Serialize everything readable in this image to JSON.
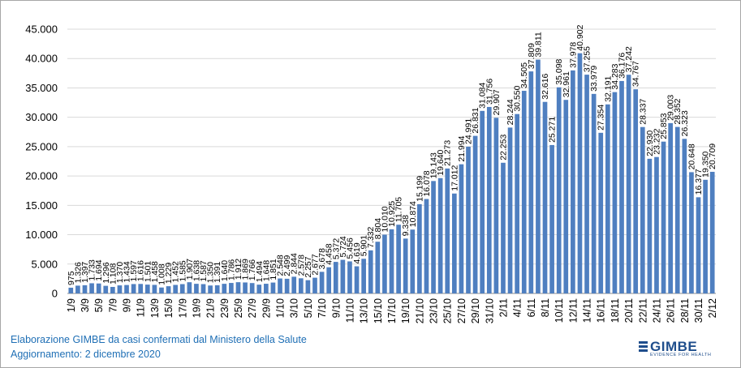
{
  "chart_data": {
    "type": "bar",
    "title": "",
    "xlabel": "",
    "ylabel": "",
    "ylim": [
      0,
      45000
    ],
    "yticks": [
      "0",
      "5.000",
      "10.000",
      "15.000",
      "20.000",
      "25.000",
      "30.000",
      "35.000",
      "40.000",
      "45.000"
    ],
    "bar_color": "#4f7fc0",
    "grid": true,
    "categories": [
      "1/9",
      "2/9",
      "3/9",
      "4/9",
      "5/9",
      "6/9",
      "7/9",
      "8/9",
      "9/9",
      "10/9",
      "11/9",
      "12/9",
      "13/9",
      "14/9",
      "15/9",
      "16/9",
      "17/9",
      "18/9",
      "19/9",
      "20/9",
      "21/9",
      "22/9",
      "23/9",
      "24/9",
      "25/9",
      "26/9",
      "27/9",
      "28/9",
      "29/9",
      "30/9",
      "1/10",
      "2/10",
      "3/10",
      "4/10",
      "5/10",
      "6/10",
      "7/10",
      "8/10",
      "9/10",
      "10/10",
      "11/10",
      "12/10",
      "13/10",
      "14/10",
      "15/10",
      "16/10",
      "17/10",
      "18/10",
      "19/10",
      "20/10",
      "21/10",
      "22/10",
      "23/10",
      "24/10",
      "25/10",
      "26/10",
      "27/10",
      "28/10",
      "29/10",
      "30/10",
      "31/10",
      "1/11",
      "2/11",
      "3/11",
      "4/11",
      "5/11",
      "6/11",
      "7/11",
      "8/11",
      "9/11",
      "10/11",
      "11/11",
      "12/11",
      "13/11",
      "14/11",
      "15/11",
      "16/11",
      "17/11",
      "18/11",
      "19/11",
      "20/11",
      "21/11",
      "22/11",
      "23/11",
      "24/11",
      "25/11",
      "26/11",
      "27/11",
      "28/11",
      "29/11",
      "30/11",
      "1/12",
      "2/12"
    ],
    "values": [
      975,
      1326,
      1397,
      1733,
      1694,
      1296,
      1108,
      1370,
      1434,
      1597,
      1616,
      1501,
      1458,
      1008,
      1229,
      1452,
      1585,
      1907,
      1638,
      1587,
      1350,
      1391,
      1640,
      1786,
      1912,
      1869,
      1766,
      1494,
      1648,
      1851,
      2548,
      2499,
      2844,
      2578,
      2257,
      2677,
      3678,
      4458,
      5372,
      5724,
      5456,
      4619,
      5901,
      7332,
      8804,
      10010,
      10925,
      11705,
      9338,
      10874,
      15199,
      16078,
      19143,
      19640,
      21273,
      17012,
      21994,
      24991,
      26831,
      31084,
      31756,
      29907,
      22253,
      28244,
      30550,
      34505,
      37809,
      39811,
      32616,
      25271,
      35098,
      32961,
      37978,
      40902,
      37255,
      33979,
      27354,
      32191,
      34283,
      36176,
      37242,
      34767,
      28337,
      22930,
      23232,
      25853,
      29003,
      28352,
      26323,
      20648,
      16377,
      19350,
      20709
    ],
    "data_labels": [
      "975",
      "1.326",
      "1.397",
      "1.733",
      "1.694",
      "1.296",
      "1.108",
      "1.370",
      "1.434",
      "1.597",
      "1.616",
      "1.501",
      "1.458",
      "1.008",
      "1.229",
      "1.452",
      "1.585",
      "1.907",
      "1.638",
      "1.587",
      "1.350",
      "1.391",
      "1.640",
      "1.786",
      "1.912",
      "1.869",
      "1.766",
      "1.494",
      "1.648",
      "1.851",
      "2.548",
      "2.499",
      "2.844",
      "2.578",
      "2.257",
      "2.677",
      "3.678",
      "4.458",
      "5.372",
      "5.724",
      "5.456",
      "4.619",
      "5.901",
      "7.332",
      "8.804",
      "10.010",
      "10.925",
      "11.705",
      "9.338",
      "10.874",
      "15.199",
      "16.078",
      "19.143",
      "19.640",
      "21.273",
      "17.012",
      "21.994",
      "24.991",
      "26.831",
      "31.084",
      "31.756",
      "29.907",
      "22.253",
      "28.244",
      "30.550",
      "34.505",
      "37.809",
      "39.811",
      "32.616",
      "25.271",
      "35.098",
      "32.961",
      "37.978",
      "40.902",
      "37.255",
      "33.979",
      "27.354",
      "32.191",
      "34.283",
      "36.176",
      "37.242",
      "34.767",
      "28.337",
      "22.930",
      "23.232",
      "25.853",
      "29.003",
      "28.352",
      "26.323",
      "20.648",
      "16.377",
      "19.350",
      "20.709"
    ]
  },
  "footer": {
    "source": "Elaborazione GIMBE da casi confermati dal Ministero della Salute",
    "updated": "Aggiornamento: 2 dicembre 2020"
  },
  "logo": {
    "name": "GIMBE",
    "tagline": "EVIDENCE FOR HEALTH"
  }
}
